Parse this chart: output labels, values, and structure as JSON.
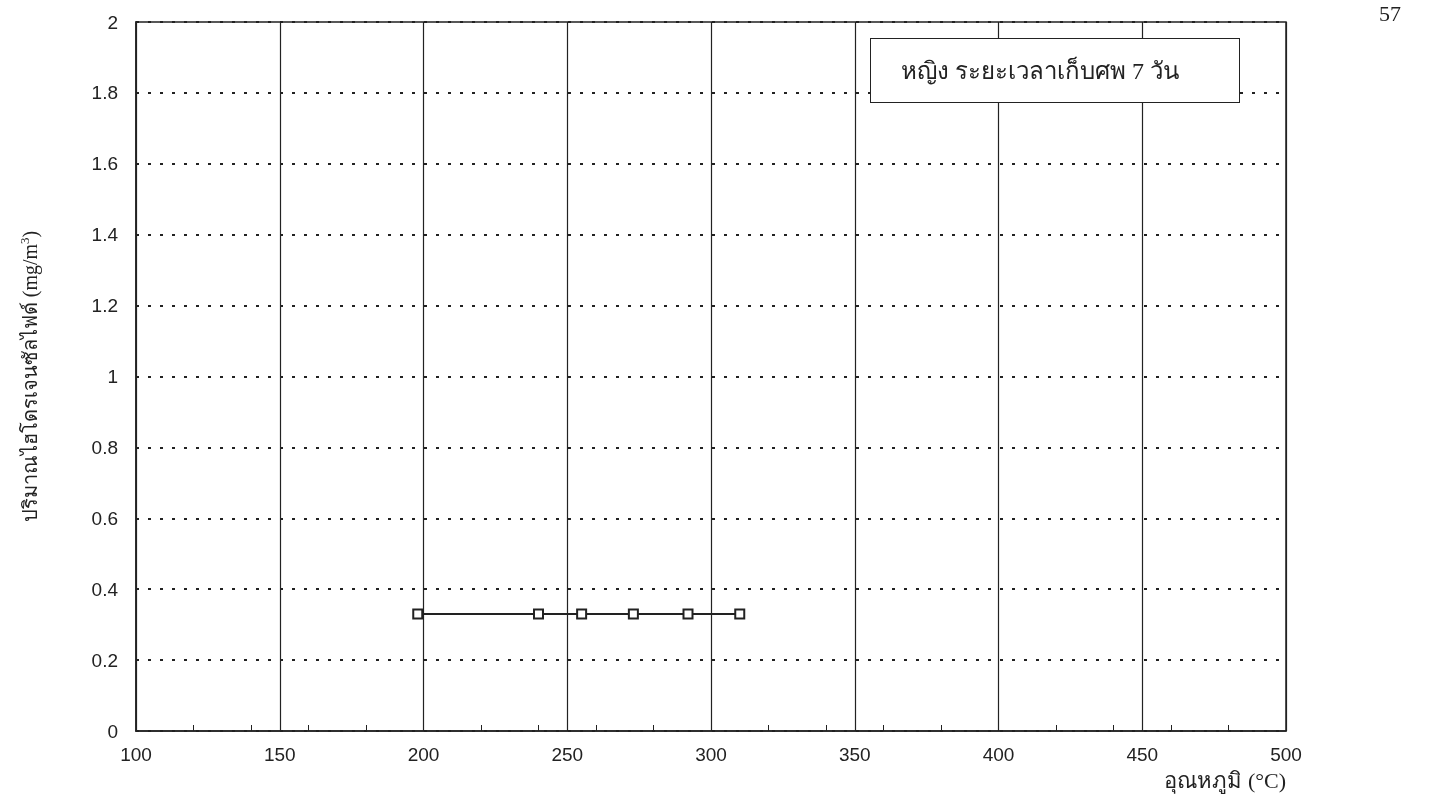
{
  "chart_data": {
    "type": "line",
    "xlabel": "อุณหภูมิ (°C)",
    "ylabel": "ปริมาณไฮโดรเจนซัลไฟด์ (mg/m$^{3}$)",
    "annotations": [
      "หญิง ระยะเวลาเก็บศพ 7 วัน",
      "57"
    ],
    "series": [
      {
        "color": "#222222",
        "x": [
          198,
          240,
          255,
          273,
          292,
          310
        ],
        "values": [
          0.33,
          0.33,
          0.33,
          0.33,
          0.33,
          0.33
        ]
      }
    ],
    "xlim": [
      100,
      500
    ],
    "xticks": [
      100,
      150,
      200,
      250,
      300,
      350,
      400,
      450,
      500
    ],
    "ylim": [
      0,
      2
    ],
    "yticks": [
      0,
      0.2,
      0.4,
      0.6,
      0.8,
      1,
      1.2,
      1.4,
      1.6,
      1.8,
      2
    ],
    "grid": true,
    "marker": "square",
    "line_style": "solid"
  }
}
